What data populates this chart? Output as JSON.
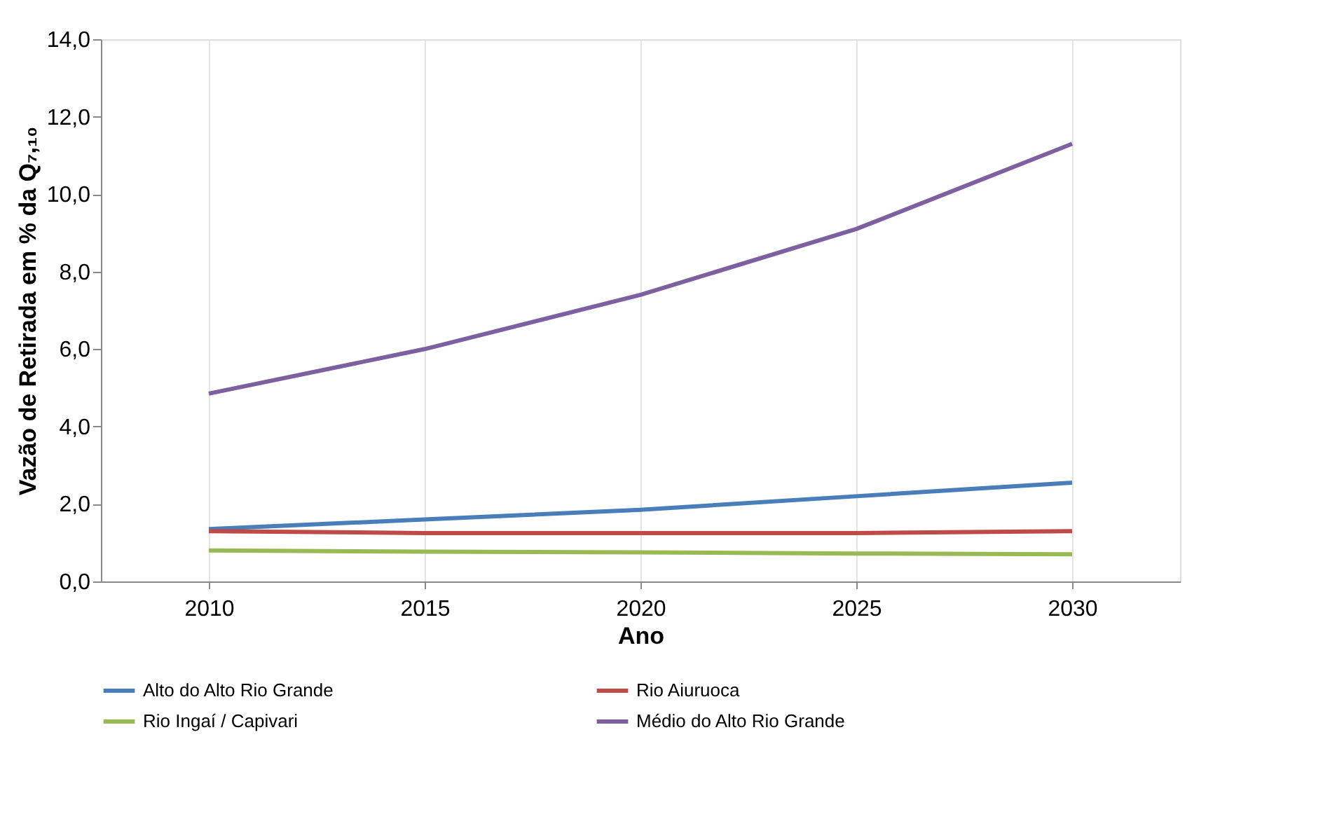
{
  "chart_data": {
    "type": "line",
    "xlabel": "Ano",
    "ylabel": "Vazão de Retirada em % da Q₇,₁₀",
    "categories": [
      "2010",
      "2015",
      "2020",
      "2025",
      "2030"
    ],
    "series": [
      {
        "name": "Alto do Alto Rio Grande",
        "color": "#4a7ebb",
        "values": [
          1.35,
          1.6,
          1.85,
          2.2,
          2.55
        ]
      },
      {
        "name": "Rio Aiuruoca",
        "color": "#be4b48",
        "values": [
          1.3,
          1.25,
          1.25,
          1.25,
          1.3
        ]
      },
      {
        "name": "Rio Ingaí / Capivari",
        "color": "#98b954",
        "values": [
          0.8,
          0.77,
          0.75,
          0.72,
          0.7
        ]
      },
      {
        "name": "Médio do Alto Rio Grande",
        "color": "#7d60a0",
        "values": [
          4.85,
          6.0,
          7.4,
          9.1,
          11.3
        ]
      }
    ],
    "ylim": [
      0,
      14
    ],
    "yticks": [
      {
        "value": 0,
        "label": "0,0"
      },
      {
        "value": 2,
        "label": "2,0"
      },
      {
        "value": 4,
        "label": "4,0"
      },
      {
        "value": 6,
        "label": "6,0"
      },
      {
        "value": 8,
        "label": "8,0"
      },
      {
        "value": 10,
        "label": "10,0"
      },
      {
        "value": 12,
        "label": "12,0"
      },
      {
        "value": 14,
        "label": "14,0"
      }
    ],
    "grid": "x",
    "legend": "bottom",
    "marker": "none",
    "line_style": "solid"
  }
}
